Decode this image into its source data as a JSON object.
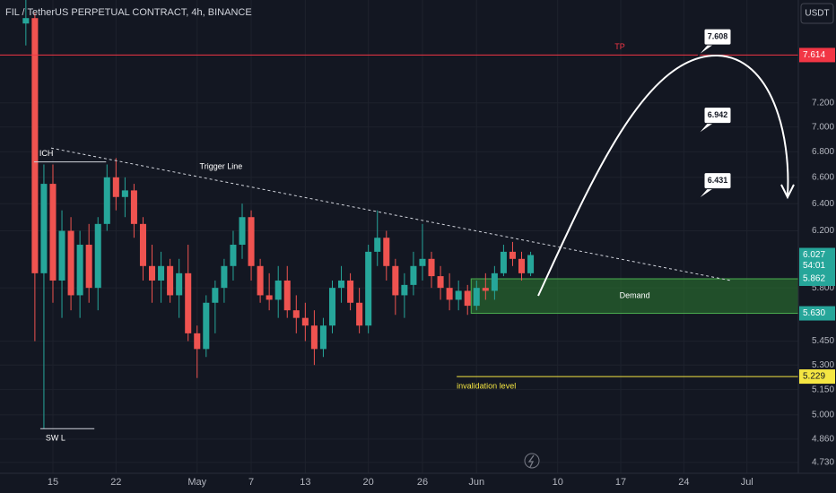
{
  "chart_data": {
    "type": "candlestick",
    "title": "FIL / TetherUS PERPETUAL CONTRACT, 4h, BINANCE",
    "y_unit": "USDT",
    "countdown": "54:01",
    "log_scale": true,
    "grid": true,
    "up_color": "#26a69a",
    "down_color": "#ef5350",
    "ylim": [
      4.67,
      8.12
    ],
    "yticks": [
      {
        "value": 4.73,
        "label": "4.730"
      },
      {
        "value": 4.86,
        "label": "4.860"
      },
      {
        "value": 5,
        "label": "5.000"
      },
      {
        "value": 5.15,
        "label": "5.150"
      },
      {
        "value": 5.3,
        "label": "5.300"
      },
      {
        "value": 5.45,
        "label": "5.450"
      },
      {
        "value": 5.8,
        "label": "5.800"
      },
      {
        "value": 6.2,
        "label": "6.200"
      },
      {
        "value": 6.4,
        "label": "6.400"
      },
      {
        "value": 6.6,
        "label": "6.600"
      },
      {
        "value": 6.8,
        "label": "6.800"
      },
      {
        "value": 7,
        "label": "7.000"
      },
      {
        "value": 7.2,
        "label": "7.200"
      }
    ],
    "xlim": [
      -5.87,
      82.7
    ],
    "xticks": [
      {
        "value": 0,
        "label": "15"
      },
      {
        "value": 7,
        "label": "22"
      },
      {
        "value": 16,
        "label": "May"
      },
      {
        "value": 22,
        "label": "7"
      },
      {
        "value": 28,
        "label": "13"
      },
      {
        "value": 35,
        "label": "20"
      },
      {
        "value": 41,
        "label": "26"
      },
      {
        "value": 47,
        "label": "Jun"
      },
      {
        "value": 56,
        "label": "10"
      },
      {
        "value": 63,
        "label": "17"
      },
      {
        "value": 70,
        "label": "24"
      },
      {
        "value": 77,
        "label": "Jul"
      }
    ],
    "x": [
      -3,
      -2,
      -1,
      0,
      1,
      2,
      3,
      4,
      5,
      6,
      7,
      8,
      9,
      10,
      11,
      12,
      13,
      14,
      15,
      16,
      17,
      18,
      19,
      20,
      21,
      22,
      23,
      24,
      25,
      26,
      27,
      28,
      29,
      30,
      31,
      32,
      33,
      34,
      35,
      36,
      37,
      38,
      39,
      40,
      41,
      42,
      43,
      44,
      45,
      46,
      47,
      48,
      49,
      50,
      51,
      52,
      53
    ],
    "open": [
      7.9,
      7.95,
      5.9,
      6.55,
      5.85,
      6.2,
      5.75,
      6.1,
      5.8,
      6.25,
      6.6,
      6.45,
      6.5,
      6.25,
      5.95,
      5.85,
      5.95,
      5.75,
      5.9,
      5.5,
      5.4,
      5.7,
      5.8,
      5.95,
      6.1,
      6.3,
      5.95,
      5.75,
      5.72,
      5.85,
      5.65,
      5.6,
      5.55,
      5.4,
      5.55,
      5.8,
      5.85,
      5.7,
      5.55,
      6.05,
      6.15,
      5.95,
      5.75,
      5.82,
      5.95,
      6.0,
      5.88,
      5.8,
      5.72,
      5.78,
      5.68,
      5.8,
      5.78,
      5.9,
      6.05,
      6.0,
      5.9
    ],
    "high": [
      8.3,
      8.0,
      6.7,
      6.7,
      6.35,
      6.3,
      6.2,
      6.25,
      6.3,
      6.7,
      6.75,
      6.6,
      6.55,
      6.3,
      6.1,
      6.05,
      6.0,
      6.0,
      6.1,
      5.55,
      5.75,
      5.85,
      6.0,
      6.2,
      6.4,
      6.35,
      6.0,
      5.9,
      5.95,
      5.95,
      5.75,
      5.7,
      5.65,
      5.6,
      5.85,
      5.95,
      5.9,
      5.8,
      6.1,
      6.35,
      6.2,
      6.0,
      5.9,
      6.05,
      6.25,
      6.05,
      5.95,
      5.9,
      5.85,
      5.82,
      5.85,
      5.9,
      5.95,
      6.1,
      6.12,
      6.05,
      6.05
    ],
    "low": [
      7.7,
      5.45,
      4.92,
      5.7,
      5.6,
      5.65,
      5.6,
      5.7,
      5.65,
      6.2,
      6.35,
      6.3,
      6.15,
      5.85,
      5.7,
      5.7,
      5.7,
      5.6,
      5.45,
      5.22,
      5.35,
      5.5,
      5.7,
      5.85,
      6.0,
      5.85,
      5.7,
      5.65,
      5.6,
      5.6,
      5.5,
      5.45,
      5.3,
      5.35,
      5.5,
      5.7,
      5.65,
      5.5,
      5.5,
      5.95,
      5.85,
      5.62,
      5.6,
      5.75,
      5.85,
      5.8,
      5.72,
      5.65,
      5.65,
      5.62,
      5.65,
      5.72,
      5.72,
      5.88,
      5.95,
      5.85,
      5.88
    ],
    "close": [
      7.95,
      5.9,
      6.55,
      5.85,
      6.2,
      5.75,
      6.1,
      5.8,
      6.25,
      6.6,
      6.45,
      6.5,
      6.25,
      5.95,
      5.85,
      5.95,
      5.75,
      5.9,
      5.5,
      5.4,
      5.7,
      5.8,
      5.95,
      6.1,
      6.3,
      5.95,
      5.75,
      5.72,
      5.85,
      5.65,
      5.6,
      5.55,
      5.4,
      5.55,
      5.8,
      5.85,
      5.7,
      5.55,
      6.05,
      6.15,
      5.95,
      5.75,
      5.82,
      5.95,
      6.0,
      5.88,
      5.8,
      5.72,
      5.78,
      5.68,
      5.8,
      5.78,
      5.9,
      6.05,
      6.0,
      5.9,
      6.027
    ],
    "levels": [
      {
        "label": "TP",
        "value": 7.614,
        "color": "#f23645",
        "from": -5.87,
        "tag": true
      },
      {
        "label": "invalidation level",
        "value": 5.229,
        "color": "#f5e642",
        "from": 44.8,
        "tag": true
      },
      {
        "label": "ICH",
        "value": 6.72,
        "color": "#d1d4dc",
        "from": -2.1,
        "to": 5.9,
        "tag": false
      },
      {
        "label": "SW L",
        "value": 4.92,
        "color": "#d1d4dc",
        "from": -1.4,
        "to": 4.6,
        "tag": false
      }
    ],
    "trend_line": {
      "label": "Trigger Line",
      "x": [
        -0.2,
        75.2
      ],
      "y": [
        6.83,
        5.85
      ]
    },
    "demand_zone": {
      "label": "Demand",
      "top": 5.862,
      "bottom": {
        "value": 5.63,
        "label": "5.630"
      },
      "from": 46.4,
      "color": "#2e7d32"
    },
    "targets": [
      7.608,
      6.942,
      6.431
    ]
  }
}
